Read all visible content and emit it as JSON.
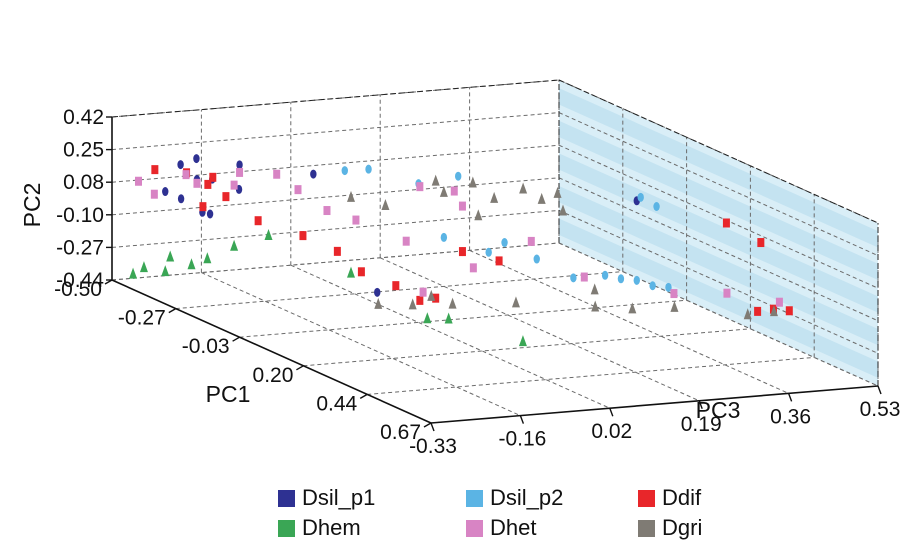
{
  "chart_data": {
    "type": "scatter3d",
    "xlabel": "PC1",
    "ylabel": "PC2",
    "zlabel": "PC3",
    "x_ticks": [
      "-0.50",
      "-0.27",
      "-0.03",
      "0.20",
      "0.44",
      "0.67"
    ],
    "y_ticks": [
      "-0.44",
      "-0.27",
      "-0.10",
      "0.08",
      "0.25",
      "0.42"
    ],
    "z_ticks": [
      "-0.33",
      "-0.16",
      "0.02",
      "0.19",
      "0.36",
      "0.53"
    ],
    "xlim": [
      -0.5,
      0.67
    ],
    "ylim": [
      -0.44,
      0.42
    ],
    "zlim": [
      -0.33,
      0.53
    ],
    "grid": true,
    "legend_position": "bottom",
    "series": [
      {
        "name": "Dsil_p1",
        "color": "#2e3192",
        "marker": "ellipse",
        "points": [
          [
            -0.42,
            0.2,
            -0.24
          ],
          [
            -0.4,
            0.24,
            -0.22
          ],
          [
            -0.38,
            0.14,
            -0.2
          ],
          [
            -0.36,
            0.16,
            -0.24
          ],
          [
            -0.4,
            0.08,
            -0.28
          ],
          [
            -0.38,
            0.05,
            -0.26
          ],
          [
            -0.35,
            -0.02,
            -0.22
          ],
          [
            -0.34,
            0.0,
            -0.24
          ],
          [
            -0.32,
            0.12,
            -0.18
          ],
          [
            -0.28,
            0.28,
            -0.2
          ],
          [
            -0.2,
            0.26,
            -0.1
          ],
          [
            -0.08,
            -0.3,
            -0.04
          ],
          [
            0.3,
            0.36,
            0.26
          ]
        ]
      },
      {
        "name": "Dsil_p2",
        "color": "#5bb4e4",
        "marker": "ellipse",
        "points": [
          [
            -0.18,
            0.28,
            -0.05
          ],
          [
            -0.15,
            0.3,
            -0.02
          ],
          [
            -0.1,
            0.24,
            0.05
          ],
          [
            -0.05,
            0.3,
            0.1
          ],
          [
            0.05,
            0.06,
            0.02
          ],
          [
            0.08,
            0.0,
            0.04
          ],
          [
            0.1,
            0.0,
            0.08
          ],
          [
            0.12,
            0.06,
            0.1
          ],
          [
            0.2,
            0.02,
            0.12
          ],
          [
            0.22,
            -0.08,
            0.18
          ],
          [
            0.26,
            -0.05,
            0.22
          ],
          [
            0.28,
            -0.06,
            0.24
          ],
          [
            0.3,
            -0.06,
            0.26
          ],
          [
            0.32,
            -0.08,
            0.28
          ],
          [
            0.34,
            -0.08,
            0.3
          ],
          [
            0.2,
            0.3,
            0.32
          ],
          [
            0.22,
            0.26,
            0.34
          ]
        ]
      },
      {
        "name": "Ddif",
        "color": "#e8262a",
        "marker": "square",
        "points": [
          [
            -0.4,
            0.2,
            -0.3
          ],
          [
            -0.36,
            0.2,
            -0.26
          ],
          [
            -0.34,
            0.18,
            -0.22
          ],
          [
            -0.32,
            0.16,
            -0.24
          ],
          [
            -0.33,
            0.08,
            -0.2
          ],
          [
            -0.3,
            0.06,
            -0.26
          ],
          [
            -0.25,
            0.0,
            -0.18
          ],
          [
            -0.2,
            -0.06,
            -0.12
          ],
          [
            -0.15,
            -0.12,
            -0.08
          ],
          [
            -0.1,
            -0.2,
            -0.06
          ],
          [
            -0.05,
            -0.25,
            -0.02
          ],
          [
            0.0,
            -0.3,
            0.0
          ],
          [
            0.02,
            -0.28,
            0.02
          ],
          [
            0.08,
            0.0,
            0.04
          ],
          [
            0.1,
            -0.05,
            0.1
          ],
          [
            0.4,
            -0.2,
            0.44
          ],
          [
            0.42,
            -0.18,
            0.46
          ],
          [
            0.44,
            -0.18,
            0.48
          ],
          [
            0.4,
            0.28,
            0.38
          ],
          [
            0.45,
            0.2,
            0.42
          ]
        ]
      },
      {
        "name": "Dhem",
        "color": "#3aa655",
        "marker": "triangle",
        "points": [
          [
            -0.48,
            -0.4,
            -0.3
          ],
          [
            -0.44,
            -0.34,
            -0.3
          ],
          [
            -0.42,
            -0.28,
            -0.26
          ],
          [
            -0.4,
            -0.34,
            -0.28
          ],
          [
            -0.38,
            -0.3,
            -0.24
          ],
          [
            -0.36,
            -0.26,
            -0.22
          ],
          [
            -0.3,
            -0.16,
            -0.2
          ],
          [
            -0.25,
            -0.08,
            -0.16
          ],
          [
            -0.1,
            -0.2,
            -0.08
          ],
          [
            0.18,
            -0.26,
            -0.08
          ],
          [
            0.22,
            -0.24,
            -0.06
          ],
          [
            0.34,
            -0.3,
            0.02
          ]
        ]
      },
      {
        "name": "Dhet",
        "color": "#d884c4",
        "marker": "square",
        "points": [
          [
            -0.46,
            0.1,
            -0.3
          ],
          [
            -0.44,
            0.04,
            -0.28
          ],
          [
            -0.4,
            0.16,
            -0.24
          ],
          [
            -0.36,
            0.14,
            -0.24
          ],
          [
            -0.3,
            0.16,
            -0.2
          ],
          [
            -0.28,
            0.24,
            -0.2
          ],
          [
            -0.22,
            0.26,
            -0.16
          ],
          [
            -0.18,
            0.2,
            -0.14
          ],
          [
            -0.15,
            0.1,
            -0.1
          ],
          [
            -0.12,
            0.06,
            -0.06
          ],
          [
            -0.05,
            -0.02,
            0.0
          ],
          [
            0.0,
            0.3,
            0.0
          ],
          [
            0.05,
            0.3,
            0.04
          ],
          [
            0.08,
            0.24,
            0.04
          ],
          [
            0.12,
            -0.06,
            0.04
          ],
          [
            0.18,
            0.1,
            0.12
          ],
          [
            0.26,
            -0.05,
            0.18
          ],
          [
            0.36,
            -0.1,
            0.3
          ],
          [
            0.44,
            -0.06,
            0.36
          ],
          [
            0.48,
            -0.1,
            0.44
          ],
          [
            0.05,
            -0.22,
            -0.02
          ]
        ]
      },
      {
        "name": "Dgri",
        "color": "#7f7b74",
        "marker": "triangle",
        "points": [
          [
            -0.1,
            0.2,
            -0.08
          ],
          [
            -0.05,
            0.18,
            -0.04
          ],
          [
            0.02,
            0.34,
            0.02
          ],
          [
            0.05,
            0.3,
            0.02
          ],
          [
            0.08,
            0.36,
            0.06
          ],
          [
            0.12,
            0.3,
            0.08
          ],
          [
            0.15,
            0.36,
            0.12
          ],
          [
            0.18,
            0.32,
            0.14
          ],
          [
            0.2,
            0.36,
            0.16
          ],
          [
            0.22,
            0.28,
            0.16
          ],
          [
            0.1,
            0.2,
            0.06
          ],
          [
            0.0,
            -0.3,
            -0.08
          ],
          [
            0.05,
            -0.28,
            -0.04
          ],
          [
            0.12,
            -0.24,
            0.0
          ],
          [
            0.2,
            -0.2,
            0.08
          ],
          [
            0.3,
            -0.18,
            0.18
          ],
          [
            0.36,
            -0.16,
            0.22
          ],
          [
            0.4,
            -0.14,
            0.28
          ],
          [
            0.44,
            -0.18,
            0.4
          ],
          [
            0.46,
            -0.16,
            0.44
          ],
          [
            0.26,
            -0.12,
            0.2
          ],
          [
            0.08,
            -0.22,
            -0.02
          ]
        ]
      }
    ]
  }
}
